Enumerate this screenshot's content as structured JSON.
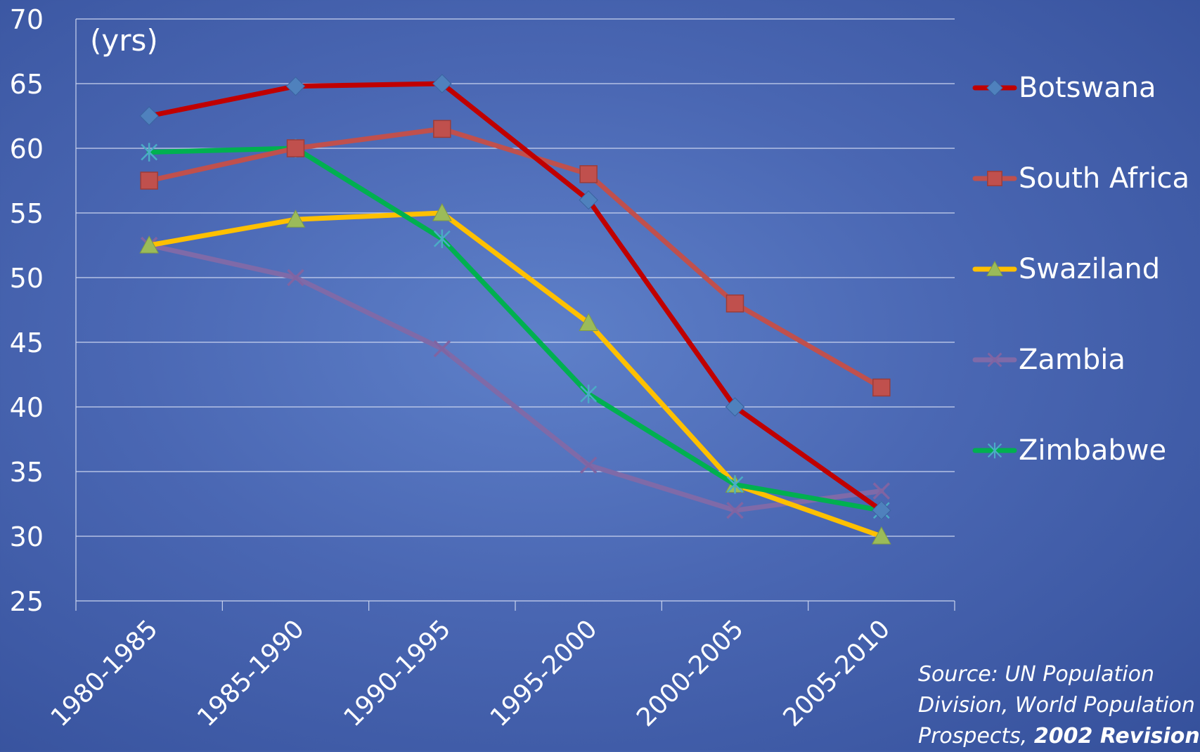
{
  "chart_data": {
    "type": "line",
    "ylabel": "(yrs)",
    "ylim": [
      25,
      70
    ],
    "yticks": [
      25,
      30,
      35,
      40,
      45,
      50,
      55,
      60,
      65,
      70
    ],
    "categories": [
      "1980-1985",
      "1985-1990",
      "1990-1995",
      "1995-2000",
      "2000-2005",
      "2005-2010"
    ],
    "grid": true,
    "legend_position": "right",
    "series": [
      {
        "name": "Botswana",
        "values": [
          62.5,
          64.8,
          65.0,
          56.0,
          40.0,
          32.0
        ],
        "color": "#c00000",
        "marker": "diamond",
        "marker_color": "#4f81bd"
      },
      {
        "name": "South Africa",
        "values": [
          57.5,
          60.0,
          61.5,
          58.0,
          48.0,
          41.5
        ],
        "color": "#c0504d",
        "marker": "square",
        "marker_color": "#c0504d"
      },
      {
        "name": "Swaziland",
        "values": [
          52.5,
          54.5,
          55.0,
          46.5,
          34.0,
          30.0
        ],
        "color": "#ffc000",
        "marker": "triangle",
        "marker_color": "#9bbb59"
      },
      {
        "name": "Zambia",
        "values": [
          52.5,
          50.0,
          44.5,
          35.5,
          32.0,
          33.5
        ],
        "color": "#7f6aa8",
        "marker": "x",
        "marker_color": "#8064a2"
      },
      {
        "name": "Zimbabwe",
        "values": [
          59.7,
          60.0,
          53.0,
          41.0,
          34.0,
          32.0
        ],
        "color": "#00b050",
        "marker": "star",
        "marker_color": "#4bacc6"
      }
    ]
  },
  "source": {
    "line1": "Source: UN Population",
    "line2": "Division, World Population",
    "line3_prefix": "Prospects, ",
    "line3_bold": "2002 Revision"
  }
}
